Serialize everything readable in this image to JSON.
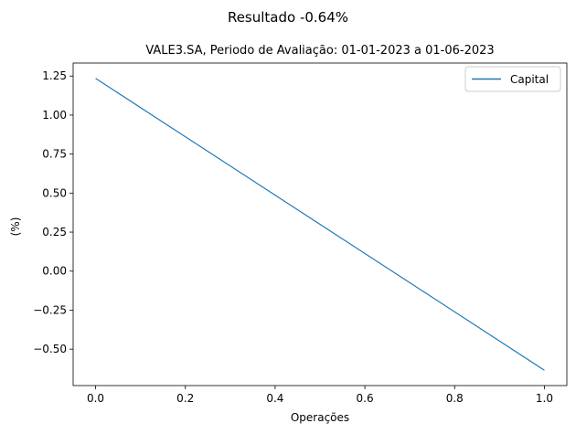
{
  "chart_data": {
    "type": "line",
    "suptitle": "Resultado -0.64%",
    "title": "VALE3.SA, Periodo de Avaliação: 01-01-2023 a 01-06-2023",
    "xlabel": "Operações",
    "ylabel": "(%)",
    "xlim": [
      -0.05,
      1.05
    ],
    "ylim": [
      -0.7333,
      1.3333
    ],
    "x_ticks": [
      0.0,
      0.2,
      0.4,
      0.6,
      0.8,
      1.0
    ],
    "x_tick_labels": [
      "0.0",
      "0.2",
      "0.4",
      "0.6",
      "0.8",
      "1.0"
    ],
    "y_ticks": [
      1.25,
      1.0,
      0.75,
      0.5,
      0.25,
      0.0,
      -0.25,
      -0.5
    ],
    "y_tick_labels": [
      "1.25",
      "1.00",
      "0.75",
      "0.50",
      "0.25",
      "0.00",
      "−0.25",
      "−0.50"
    ],
    "grid": false,
    "legend_position": "top-right",
    "series": [
      {
        "name": "Capital",
        "color": "#1f77b4",
        "x": [
          0,
          1
        ],
        "y": [
          1.235,
          -0.635
        ]
      }
    ]
  }
}
